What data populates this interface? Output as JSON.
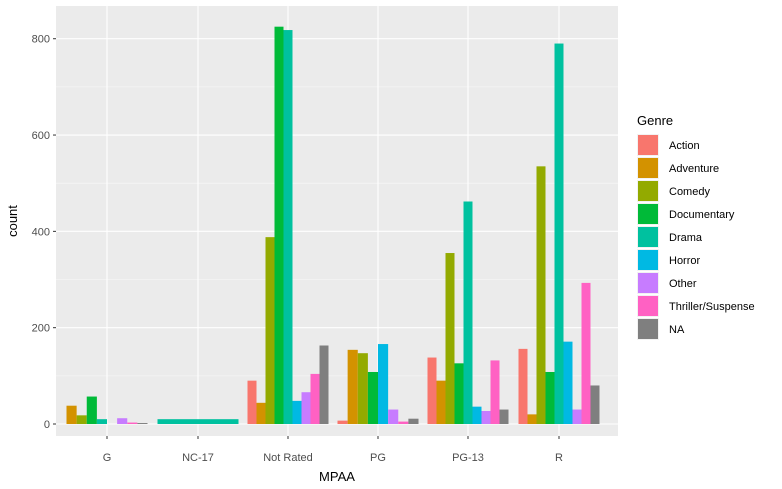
{
  "chart_data": {
    "type": "bar",
    "subtype": "dodged",
    "xlabel": "MPAA",
    "ylabel": "count",
    "ylim": [
      -50,
      880
    ],
    "yticks": [
      0,
      200,
      400,
      600,
      800
    ],
    "grid": true,
    "legend_position": "right",
    "legend_title": "Genre",
    "categories": [
      "G",
      "NC-17",
      "Not Rated",
      "PG",
      "PG-13",
      "R"
    ],
    "series": [
      {
        "name": "Action",
        "color": "#F8766D",
        "values": [
          0,
          0,
          90,
          7,
          138,
          156
        ]
      },
      {
        "name": "Adventure",
        "color": "#D39200",
        "values": [
          38,
          0,
          44,
          154,
          90,
          20
        ]
      },
      {
        "name": "Comedy",
        "color": "#93AA00",
        "values": [
          18,
          0,
          388,
          147,
          355,
          535
        ]
      },
      {
        "name": "Documentary",
        "color": "#00BA38",
        "values": [
          57,
          0,
          825,
          108,
          126,
          108
        ]
      },
      {
        "name": "Drama",
        "color": "#00C19F",
        "values": [
          10,
          10,
          818,
          0,
          462,
          790
        ]
      },
      {
        "name": "Horror",
        "color": "#00B9E3",
        "values": [
          0,
          0,
          48,
          166,
          36,
          171
        ]
      },
      {
        "name": "Other",
        "color": "#C77CFF",
        "values": [
          12,
          0,
          66,
          30,
          27,
          30
        ]
      },
      {
        "name": "Thriller/Suspense",
        "color": "#FF61C3",
        "values": [
          3,
          0,
          104,
          5,
          132,
          293
        ]
      },
      {
        "name": "NA",
        "color": "#7F7F7F",
        "values": [
          2,
          0,
          163,
          11,
          30,
          80
        ]
      }
    ],
    "present": [
      [
        false,
        true,
        true,
        true,
        true,
        true,
        true,
        true,
        true
      ],
      [
        false,
        false,
        false,
        false,
        true,
        false,
        false,
        false,
        false
      ],
      [
        true,
        true,
        true,
        true,
        true,
        true,
        true,
        true,
        true
      ],
      [
        true,
        true,
        true,
        true,
        false,
        true,
        true,
        true,
        true
      ],
      [
        true,
        true,
        true,
        true,
        true,
        true,
        true,
        true,
        true
      ],
      [
        true,
        true,
        true,
        true,
        true,
        true,
        true,
        true,
        true
      ]
    ]
  }
}
